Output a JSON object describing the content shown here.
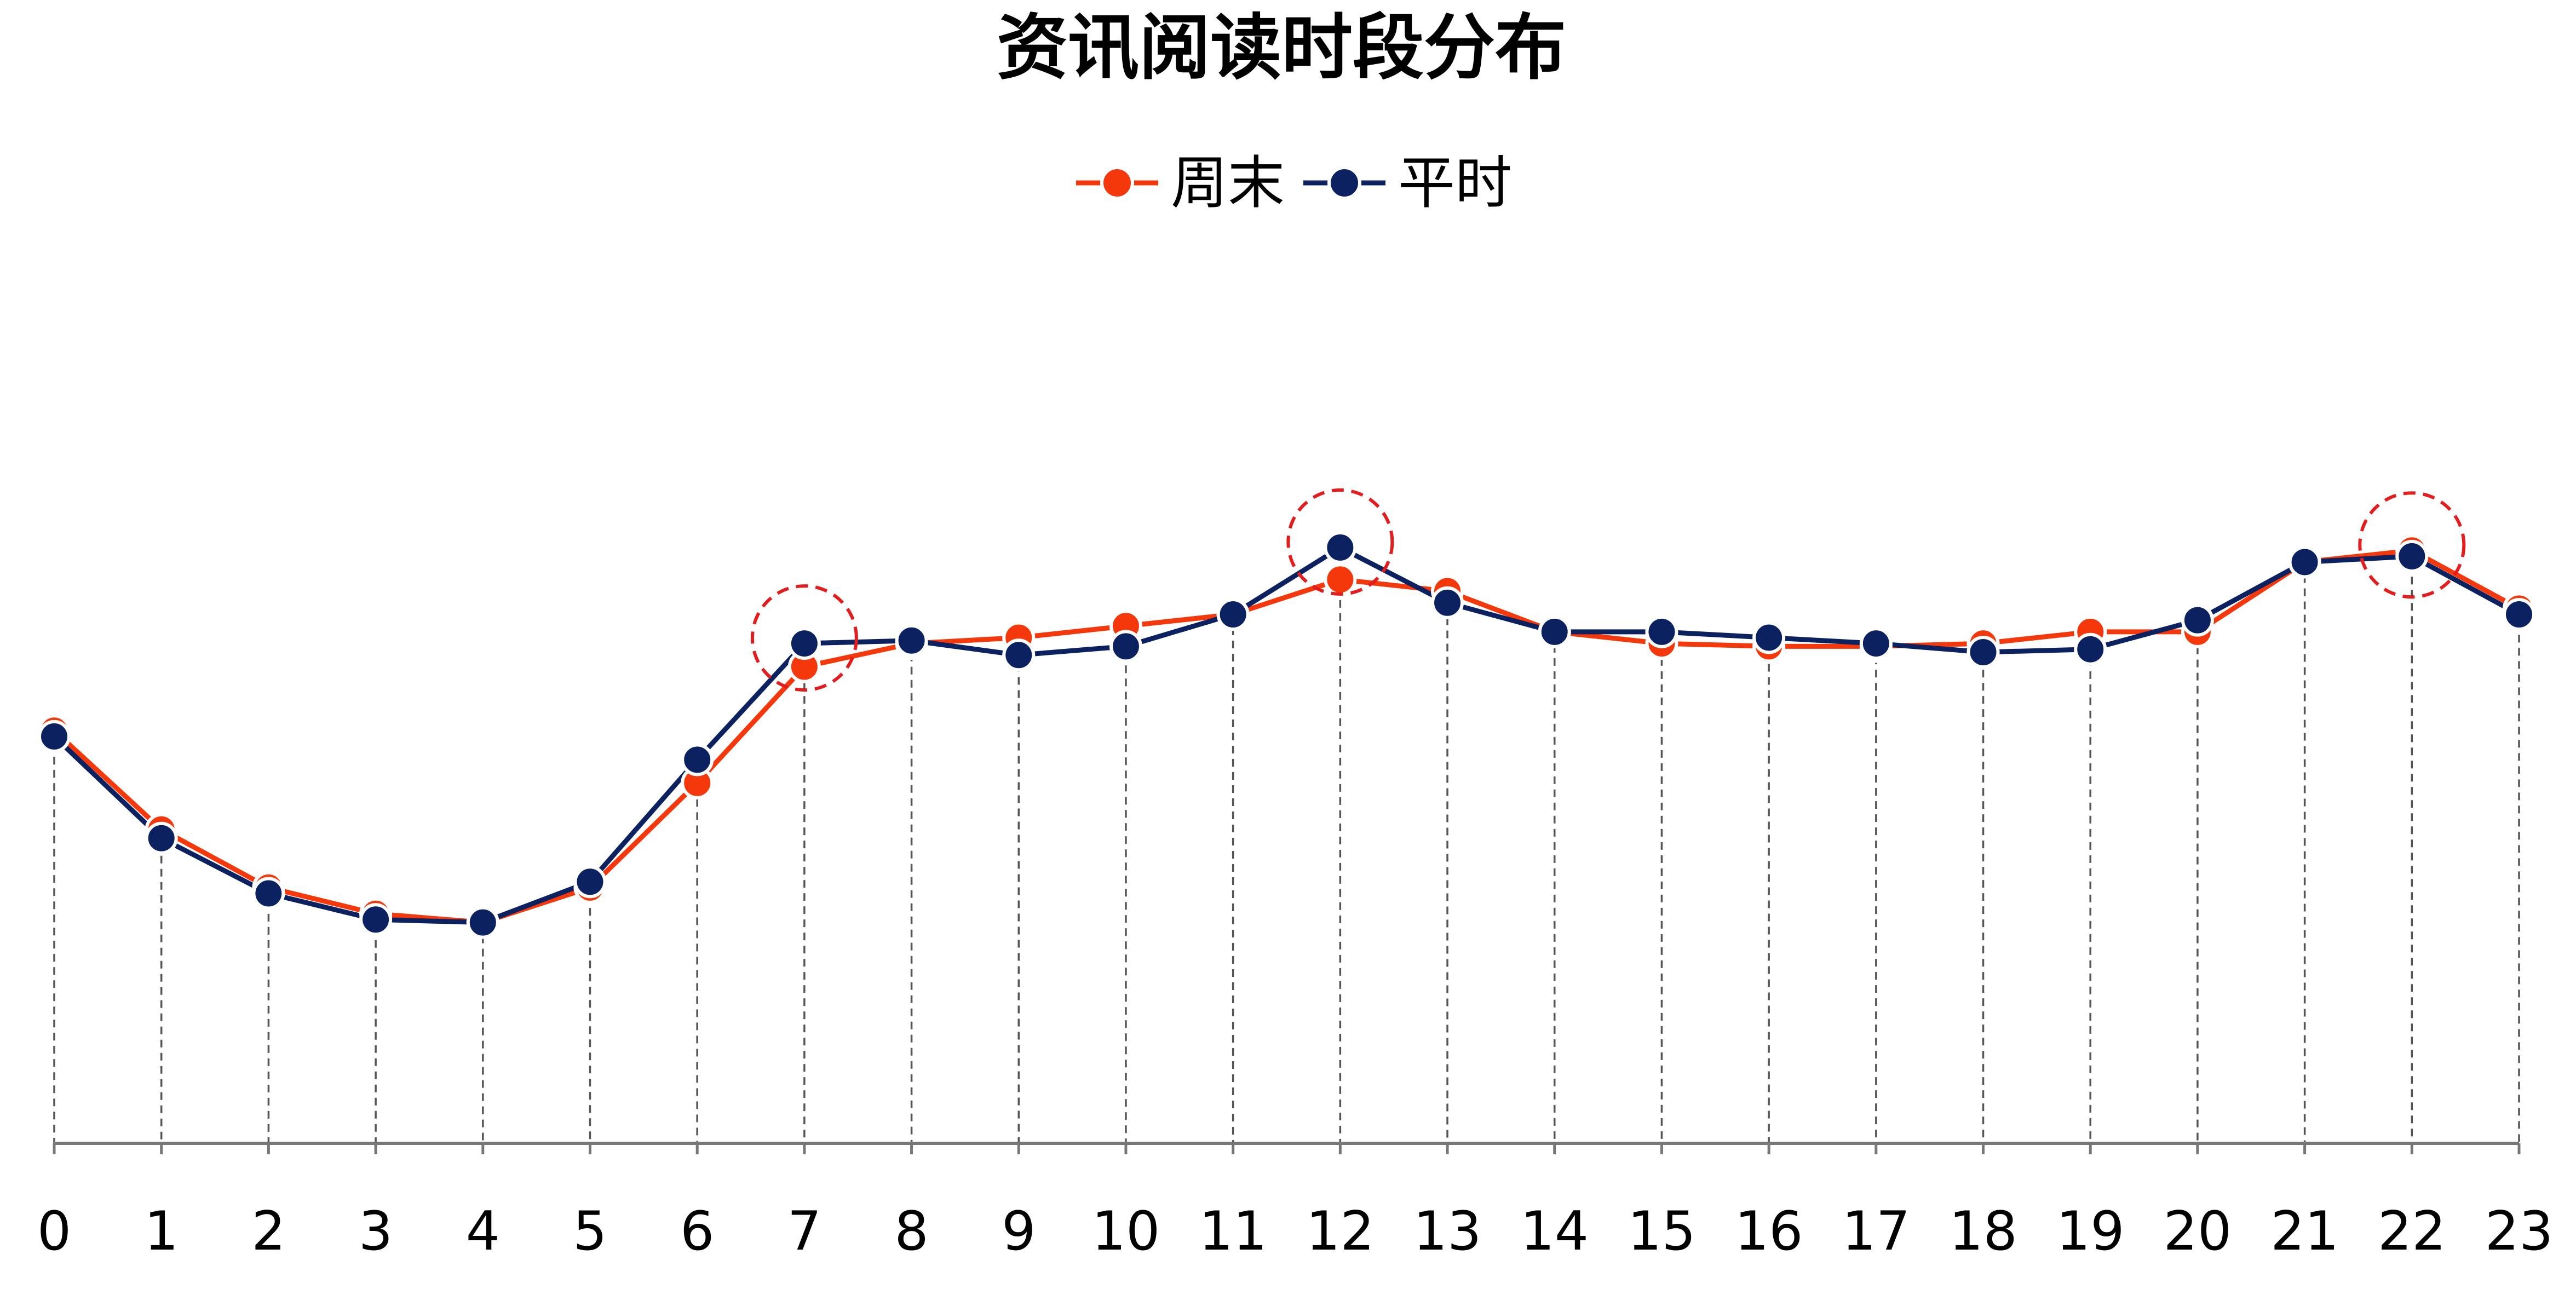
{
  "chart_data": {
    "type": "line",
    "title": "资讯阅读时段分布",
    "xlabel": "",
    "ylabel": "",
    "categories": [
      "0",
      "1",
      "2",
      "3",
      "4",
      "5",
      "6",
      "7",
      "8",
      "9",
      "10",
      "11",
      "12",
      "13",
      "14",
      "15",
      "16",
      "17",
      "18",
      "19",
      "20",
      "21",
      "22",
      "23"
    ],
    "series": [
      {
        "name": "周末",
        "color": "#f5380c",
        "values": [
          41,
          24,
          14,
          9.5,
          8,
          14,
          32,
          52,
          56,
          57,
          59,
          61,
          67,
          65,
          58,
          56,
          55.5,
          55.5,
          56,
          58,
          58,
          70,
          72,
          62
        ]
      },
      {
        "name": "平时",
        "color": "#0b2160",
        "values": [
          40,
          22.5,
          13,
          8.5,
          8,
          15,
          36,
          56,
          56.5,
          54,
          55.5,
          61,
          72.5,
          63,
          58,
          58,
          57,
          56,
          54.5,
          55,
          60,
          70,
          71,
          61
        ]
      }
    ],
    "ylim": [
      -30,
      100
    ],
    "grid": false,
    "dropline_style": "dashed",
    "legend_position": "top-center",
    "highlighted_categories": [
      "7",
      "12",
      "22"
    ],
    "highlight_color": "#e31d1d",
    "axis_color": "#777777"
  }
}
